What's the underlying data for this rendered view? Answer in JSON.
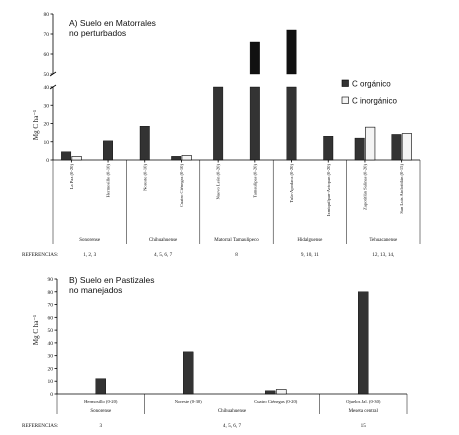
{
  "chart_data": [
    {
      "type": "bar",
      "title": "A) Suelo en Matorrales",
      "subtitle": "no perturbados",
      "ylabel": "Mg C ha⁻¹",
      "ylim": [
        0,
        80
      ],
      "axis_break": [
        40,
        50
      ],
      "yticks_lower": [
        0,
        10,
        20,
        30,
        40
      ],
      "yticks_upper": [
        50,
        60,
        70,
        80
      ],
      "legend": {
        "position": "right",
        "items": [
          {
            "name": "C orgánico",
            "color": "#333333"
          },
          {
            "name": "C inorgánico",
            "color": "#f4f4f4"
          }
        ]
      },
      "series": [
        {
          "name": "C orgánico",
          "color": "#333333",
          "values": [
            4.5,
            10.5,
            18.5,
            2,
            40,
            66,
            72,
            13,
            12,
            14
          ]
        },
        {
          "name": "C inorgánico",
          "color": "#f4f4f4",
          "values": [
            2,
            null,
            null,
            2.5,
            null,
            null,
            null,
            null,
            18,
            14.5
          ]
        }
      ],
      "categories": [
        "La Paz (0-20)",
        "Hermosillo (0-10)",
        "Noreste (0-10)",
        "Cuatro Ciénegas (0-10)",
        "Nuevo León (0-20)",
        "Tamaulipas (0-20)",
        "Tula-Apodaca (0-20)",
        "Ixmiquilpan-Actopan (0-20)",
        "Zapotitlán Salinas (0-20)",
        "San Luis Atolotitlán (0-15)"
      ],
      "groups": [
        {
          "name": "Sonorense",
          "ref": "1, 2, 3",
          "start": 0,
          "end": 1
        },
        {
          "name": "Chihuahuense",
          "ref": "4, 5, 6, 7",
          "start": 2,
          "end": 3
        },
        {
          "name": "Matorral Tamaulipeco",
          "ref": "8",
          "start": 4,
          "end": 5
        },
        {
          "name": "Hidalguense",
          "ref": "9, 10, 11",
          "start": 6,
          "end": 7
        },
        {
          "name": "Tehuacanense",
          "ref": "12, 13, 14,",
          "start": 8,
          "end": 9
        }
      ],
      "ref_label": "REFERENCIAS:"
    },
    {
      "type": "bar",
      "title": "B) Suelo en Pastizales",
      "subtitle": "no manejados",
      "ylabel": "Mg C ha⁻¹",
      "ylim": [
        0,
        90
      ],
      "yticks": [
        0,
        10,
        20,
        30,
        40,
        50,
        60,
        70,
        80,
        90
      ],
      "series": [
        {
          "name": "C orgánico",
          "color": "#333333",
          "values": [
            12,
            33,
            2.5,
            80
          ]
        },
        {
          "name": "C inorgánico",
          "color": "#f4f4f4",
          "values": [
            null,
            null,
            3.5,
            null
          ]
        }
      ],
      "categories": [
        "Hermosillo (0-20)",
        "Noreste (0-30)",
        "Cuatro Ciénegas (0-20)",
        "Ojuelos Jal. (0-30)"
      ],
      "groups": [
        {
          "name": "Sonorense",
          "ref": "3",
          "start": 0,
          "end": 0
        },
        {
          "name": "Chihuahuense",
          "ref": "4, 5, 6, 7",
          "start": 1,
          "end": 2
        },
        {
          "name": "Meseta central",
          "ref": "15",
          "start": 3,
          "end": 3
        }
      ],
      "ref_label": "REFERENCIAS:"
    }
  ]
}
